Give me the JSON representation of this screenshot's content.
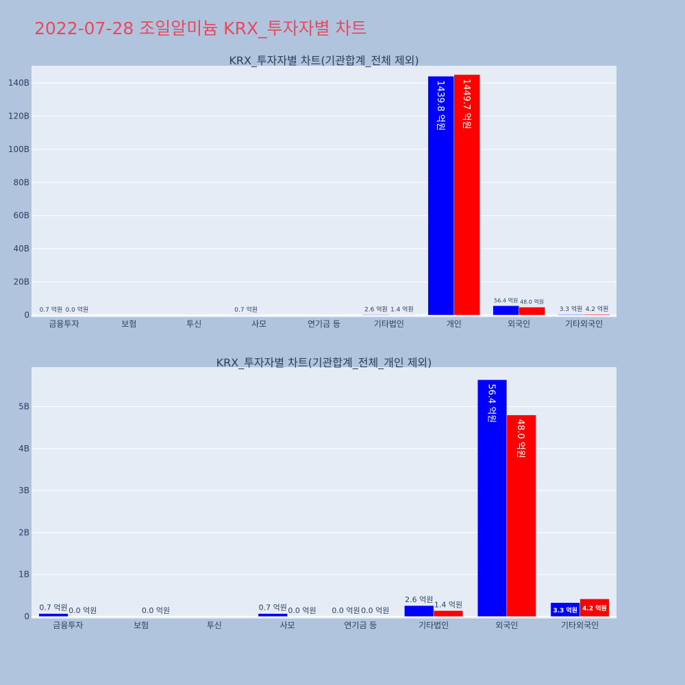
{
  "page": {
    "title": "2022-07-28 조일알미늄 KRX_투자자별 차트"
  },
  "chart_data": [
    {
      "type": "bar",
      "title": "KRX_투자자별 차트(기관합계_전체 제외)",
      "categories": [
        "금융투자",
        "보험",
        "투신",
        "사모",
        "연기금 등",
        "기타법인",
        "개인",
        "외국인",
        "기타외국인"
      ],
      "series": [
        {
          "color": "#0000ff",
          "values": [
            0.07,
            0,
            0,
            0.07,
            0,
            0.26,
            143.98,
            5.64,
            0.33
          ],
          "labels": [
            "0.7 억원",
            "",
            "",
            "0.7 억원",
            "",
            "2.6 억원",
            "1439.8 억원",
            "56.4 억원",
            "3.3 억원"
          ]
        },
        {
          "color": "#ff0000",
          "values": [
            0,
            0,
            0,
            0,
            0,
            0.14,
            144.97,
            4.8,
            0.42
          ],
          "labels": [
            "0.0 억원",
            "",
            "",
            "",
            "",
            "1.4 억원",
            "1449.7 억원",
            "48.0 억원",
            "4.2 억원"
          ]
        }
      ],
      "yticks": [
        0,
        20,
        40,
        60,
        80,
        100,
        120,
        140
      ],
      "ytick_labels": [
        "0",
        "20B",
        "40B",
        "60B",
        "80B",
        "100B",
        "120B",
        "140B"
      ],
      "ylim": [
        0,
        150.3
      ],
      "grid": true
    },
    {
      "type": "bar",
      "title": "KRX_투자자별 차트(기관합계_전체_개인 제외)",
      "categories": [
        "금융투자",
        "보험",
        "투신",
        "사모",
        "연기금 등",
        "기타법인",
        "외국인",
        "기타외국인"
      ],
      "series": [
        {
          "color": "#0000ff",
          "values": [
            0.07,
            0,
            0,
            0.07,
            0,
            0.26,
            5.64,
            0.33
          ],
          "labels": [
            "0.7 억원",
            "",
            "",
            "0.7 억원",
            "0.0 억원",
            "2.6 억원",
            "56.4 억원",
            "3.3 억원"
          ]
        },
        {
          "color": "#ff0000",
          "values": [
            0,
            0,
            0,
            0,
            0,
            0.14,
            4.8,
            0.42
          ],
          "labels": [
            "0.0 억원",
            "0.0 억원",
            "",
            "0.0 억원",
            "0.0 억원",
            "1.4 억원",
            "48.0 억원",
            "4.2 억원"
          ]
        }
      ],
      "yticks": [
        0,
        1,
        2,
        3,
        4,
        5
      ],
      "ytick_labels": [
        "0",
        "1B",
        "2B",
        "3B",
        "4B",
        "5B"
      ],
      "ylim": [
        0,
        5.94
      ],
      "grid": true
    }
  ]
}
